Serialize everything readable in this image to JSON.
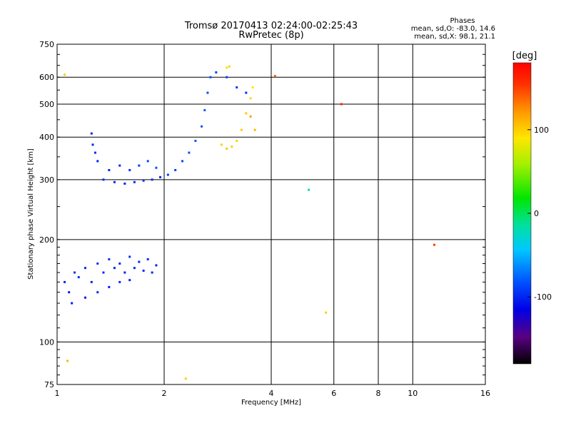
{
  "header": {
    "title_line1": "Tromsø 20170413 02:24:00-02:25:43",
    "title_line2": "RwPretec (8p)"
  },
  "stats": {
    "heading": "Phases",
    "line_o": "mean, sd,O: -83.0, 14.6",
    "line_x": "mean, sd,X:  98.1, 21.1"
  },
  "colorbar": {
    "unit_label": "[deg]",
    "ticks": [
      {
        "value": 100,
        "label": "100"
      },
      {
        "value": 0,
        "label": "0"
      },
      {
        "value": -100,
        "label": "-100"
      }
    ],
    "range": [
      -180,
      180
    ],
    "stops": [
      "#000000",
      "#5a0082",
      "#0000e6",
      "#0050ff",
      "#00c8ff",
      "#00e0a0",
      "#00e600",
      "#a0f000",
      "#ffe600",
      "#ffa000",
      "#ff3000",
      "#ff0000"
    ]
  },
  "chart_data": {
    "type": "scatter",
    "title": "Tromsø 20170413 02:24:00-02:25:43",
    "subtitle": "RwPretec (8p)",
    "xlabel": "Frequency [MHz]",
    "ylabel": "Stationary phase Virtual Height [km]",
    "xscale": "log",
    "yscale": "log",
    "xlim": [
      1,
      16
    ],
    "ylim": [
      75,
      750
    ],
    "xticks": [
      {
        "v": 1,
        "label": "1"
      },
      {
        "v": 2,
        "label": "2"
      },
      {
        "v": 4,
        "label": "4"
      },
      {
        "v": 6,
        "label": "6"
      },
      {
        "v": 8,
        "label": "8"
      },
      {
        "v": 10,
        "label": "10"
      },
      {
        "v": 16,
        "label": "16"
      }
    ],
    "yticks": [
      {
        "v": 75,
        "label": "75"
      },
      {
        "v": 100,
        "label": "100"
      },
      {
        "v": 200,
        "label": "200"
      },
      {
        "v": 300,
        "label": "300"
      },
      {
        "v": 400,
        "label": "400"
      },
      {
        "v": 500,
        "label": "500"
      },
      {
        "v": 600,
        "label": "600"
      },
      {
        "v": 750,
        "label": "750"
      }
    ],
    "grid": true,
    "color_variable": "phase [deg]",
    "series": [
      {
        "points": [
          [
            1.05,
            150,
            -100
          ],
          [
            1.08,
            140,
            -105
          ],
          [
            1.12,
            160,
            -95
          ],
          [
            1.15,
            155,
            -100
          ],
          [
            1.2,
            165,
            -98
          ],
          [
            1.25,
            150,
            -102
          ],
          [
            1.3,
            170,
            -96
          ],
          [
            1.35,
            160,
            -100
          ],
          [
            1.4,
            175,
            -95
          ],
          [
            1.45,
            165,
            -100
          ],
          [
            1.5,
            170,
            -98
          ],
          [
            1.55,
            160,
            -101
          ],
          [
            1.6,
            178,
            -96
          ],
          [
            1.65,
            165,
            -100
          ],
          [
            1.7,
            172,
            -99
          ],
          [
            1.75,
            162,
            -100
          ],
          [
            1.8,
            175,
            -97
          ],
          [
            1.85,
            160,
            -98
          ],
          [
            1.9,
            168,
            -100
          ],
          [
            1.1,
            130,
            -104
          ],
          [
            1.2,
            135,
            -103
          ],
          [
            1.3,
            140,
            -100
          ],
          [
            1.4,
            145,
            -102
          ],
          [
            1.5,
            150,
            -99
          ],
          [
            1.6,
            152,
            -101
          ],
          [
            1.35,
            300,
            -100
          ],
          [
            1.45,
            295,
            -100
          ],
          [
            1.55,
            292,
            -101
          ],
          [
            1.65,
            295,
            -99
          ],
          [
            1.75,
            298,
            -100
          ],
          [
            1.85,
            300,
            -98
          ],
          [
            1.95,
            305,
            -97
          ],
          [
            1.4,
            320,
            -100
          ],
          [
            1.3,
            340,
            -102
          ],
          [
            1.28,
            360,
            -100
          ],
          [
            1.26,
            380,
            -99
          ],
          [
            1.25,
            410,
            -100
          ],
          [
            1.5,
            330,
            -100
          ],
          [
            1.6,
            320,
            -95
          ],
          [
            1.7,
            330,
            -90
          ],
          [
            1.8,
            340,
            -85
          ],
          [
            1.9,
            325,
            -82
          ],
          [
            2.05,
            310,
            -90
          ],
          [
            2.15,
            320,
            -88
          ],
          [
            2.25,
            340,
            -85
          ],
          [
            2.35,
            360,
            -82
          ],
          [
            2.45,
            390,
            -80
          ],
          [
            2.55,
            430,
            -82
          ],
          [
            2.6,
            480,
            -80
          ],
          [
            2.65,
            540,
            -85
          ],
          [
            2.7,
            600,
            -84
          ],
          [
            2.8,
            620,
            -88
          ],
          [
            3.0,
            600,
            -90
          ],
          [
            3.2,
            560,
            -92
          ],
          [
            3.4,
            540,
            -95
          ],
          [
            2.9,
            380,
            100
          ],
          [
            3.0,
            370,
            105
          ],
          [
            3.1,
            375,
            100
          ],
          [
            3.2,
            390,
            98
          ],
          [
            3.3,
            420,
            100
          ],
          [
            3.4,
            470,
            102
          ],
          [
            3.5,
            520,
            95
          ],
          [
            3.55,
            560,
            90
          ],
          [
            3.0,
            640,
            95
          ],
          [
            3.05,
            645,
            98
          ],
          [
            3.6,
            420,
            110
          ],
          [
            3.5,
            460,
            120
          ],
          [
            1.05,
            610,
            100
          ],
          [
            4.1,
            605,
            140
          ],
          [
            6.3,
            500,
            160
          ],
          [
            11.5,
            193,
            150
          ],
          [
            5.7,
            122,
            100
          ],
          [
            2.3,
            78,
            100
          ],
          [
            1.07,
            88,
            110
          ],
          [
            5.1,
            280,
            -20
          ]
        ]
      }
    ]
  }
}
